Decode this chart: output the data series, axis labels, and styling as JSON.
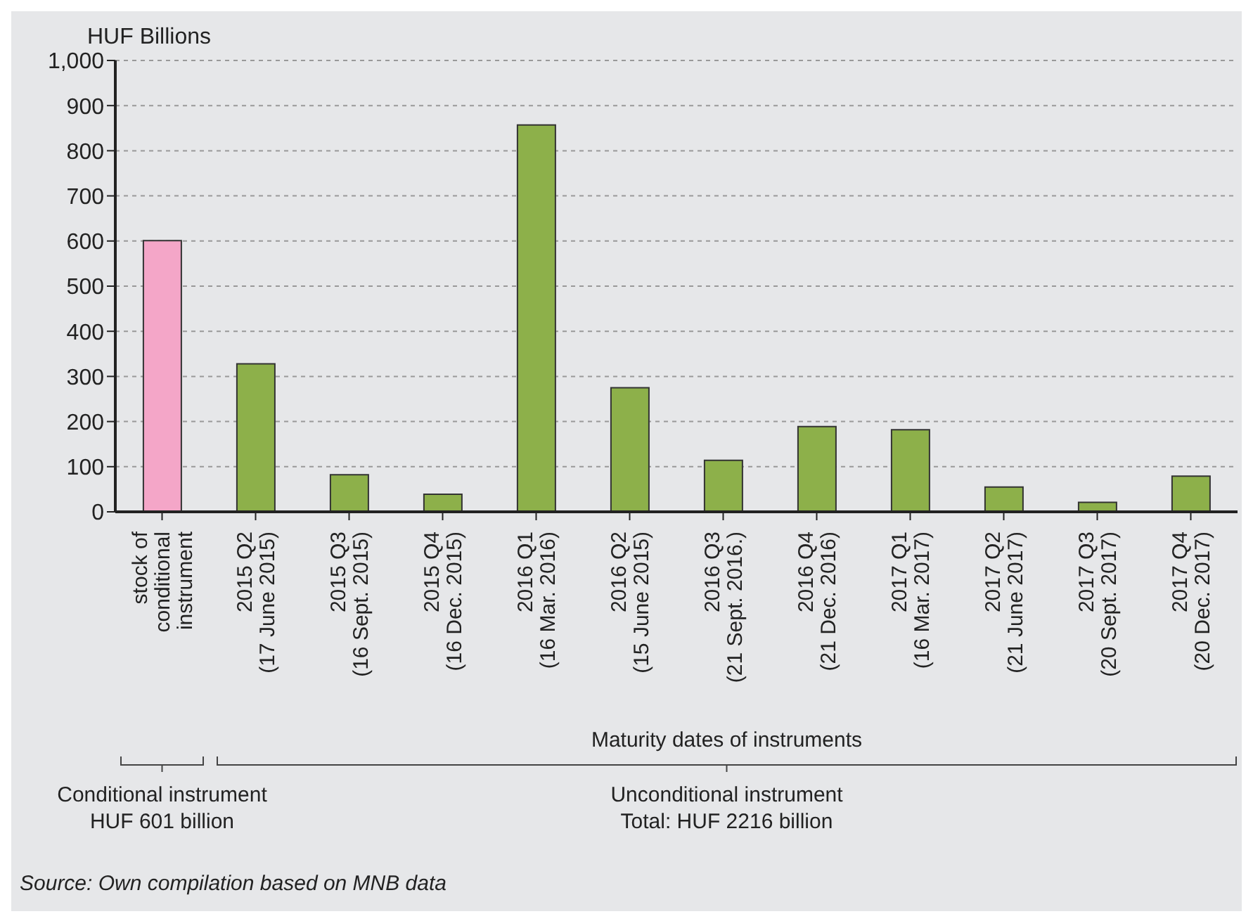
{
  "chart_data": {
    "type": "bar",
    "ylabel": "HUF Billions",
    "xlabel": "Maturity dates of  instruments",
    "categories": [
      "stock of\nconditional\ninstrument",
      "2015 Q2\n(17 June 2015)",
      "2015 Q3\n(16 Sept. 2015)",
      "2015 Q4\n(16 Dec. 2015)",
      "2016 Q1\n(16 Mar. 2016)",
      "2016 Q2\n(15 June 2015)",
      "2016 Q3\n(21 Sept. 2016.)",
      "2016 Q4\n(21 Dec. 2016)",
      "2017 Q1\n(16 Mar. 2017)",
      "2017 Q2\n(21 June 2017)",
      "2017 Q3\n(20 Sept. 2017)",
      "2017 Q4\n(20 Dec. 2017)"
    ],
    "values": [
      601,
      328,
      82,
      39,
      857,
      275,
      114,
      189,
      182,
      55,
      21,
      79
    ],
    "colors": [
      "#f4a6c8",
      "#8db04a",
      "#8db04a",
      "#8db04a",
      "#8db04a",
      "#8db04a",
      "#8db04a",
      "#8db04a",
      "#8db04a",
      "#8db04a",
      "#8db04a",
      "#8db04a"
    ],
    "ylim": [
      0,
      1000
    ],
    "yticks": [
      0,
      100,
      200,
      300,
      400,
      500,
      600,
      700,
      800,
      900,
      {
        "value": 1000,
        "label": "1,000"
      }
    ],
    "grid": "y",
    "annotations": [
      "Conditional instrument\nHUF 601 billion",
      "Unconditional instrument\nTotal: HUF 2216 billion",
      "Source: Own compilation based on MNB data"
    ]
  }
}
